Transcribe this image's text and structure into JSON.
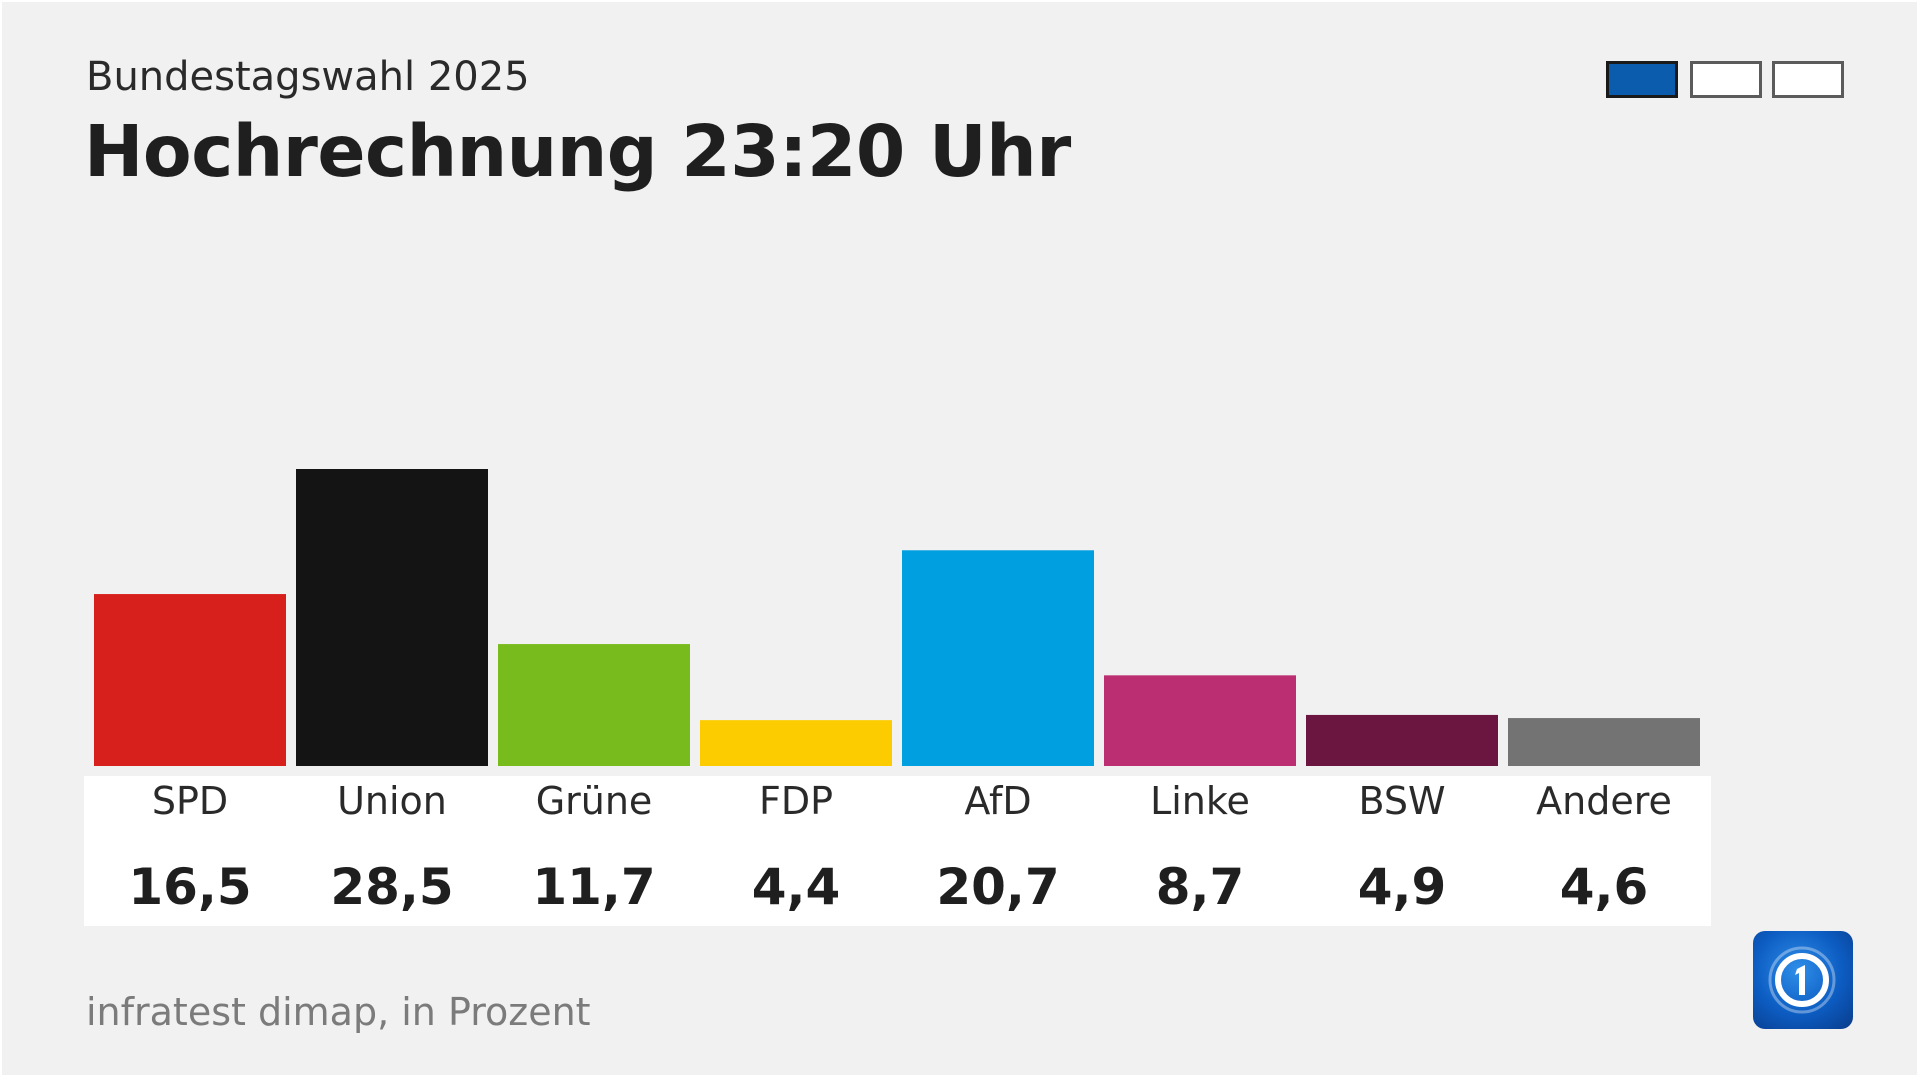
{
  "header": {
    "subtitle": "Bundestagswahl 2025",
    "title": "Hochrechnung 23:20 Uhr"
  },
  "pager": {
    "pages": 3,
    "active_index": 0,
    "active_color": "#0b5cad"
  },
  "chart_data": {
    "type": "bar",
    "title": "Hochrechnung 23:20 Uhr",
    "subtitle": "Bundestagswahl 2025",
    "categories": [
      "SPD",
      "Union",
      "Grüne",
      "FDP",
      "AfD",
      "Linke",
      "BSW",
      "Andere"
    ],
    "values": [
      16.5,
      28.5,
      11.7,
      4.4,
      20.7,
      8.7,
      4.9,
      4.6
    ],
    "value_labels": [
      "16,5",
      "28,5",
      "11,7",
      "4,4",
      "20,7",
      "8,7",
      "4,9",
      "4,6"
    ],
    "colors": [
      "#d7201c",
      "#141414",
      "#78bb1c",
      "#fdcc00",
      "#009fe0",
      "#bb2e72",
      "#6a1640",
      "#737373"
    ],
    "xlabel": "",
    "ylabel": "",
    "ylim": [
      0,
      28.5
    ],
    "grid": false,
    "legend": "none"
  },
  "footer": {
    "source": "infratest dimap, in Prozent"
  },
  "logo": {
    "icon": "ard-logo-icon",
    "colors": [
      "#0c5cc2",
      "#ffffff"
    ]
  }
}
